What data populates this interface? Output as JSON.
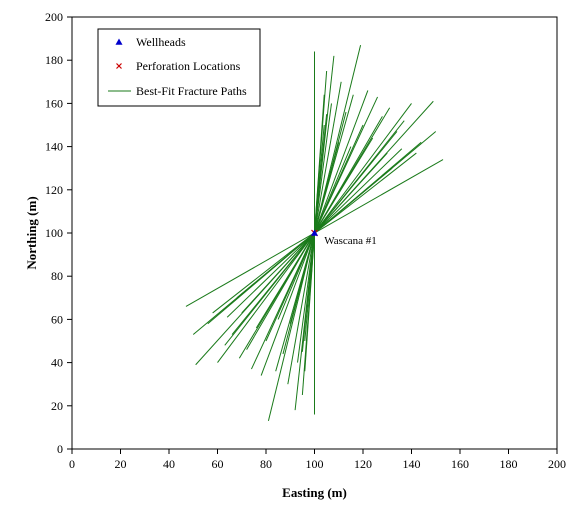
{
  "chart_data": {
    "type": "line",
    "title": "",
    "xlabel": "Easting (m)",
    "ylabel": "Northing (m)",
    "xlim": [
      0,
      200
    ],
    "ylim": [
      0,
      200
    ],
    "xticks": [
      0,
      20,
      40,
      60,
      80,
      100,
      120,
      140,
      160,
      180,
      200
    ],
    "yticks": [
      0,
      20,
      40,
      60,
      80,
      100,
      120,
      140,
      160,
      180,
      200
    ],
    "grid": false,
    "legend_position": "top-left",
    "legend": [
      {
        "label": "Wellheads",
        "marker": "triangle",
        "color": "#0000cc"
      },
      {
        "label": "Perforation Locations",
        "marker": "x",
        "color": "#cc0000"
      },
      {
        "label": "Best-Fit Fracture Paths",
        "marker": "line",
        "color": "#1a7a1a"
      }
    ],
    "wellheads": [
      {
        "x": 100,
        "y": 100
      }
    ],
    "perforations": [
      {
        "x": 100,
        "y": 100
      }
    ],
    "annotations": [
      {
        "text": "Wascana #1",
        "x": 104,
        "y": 95
      }
    ],
    "fracture_color": "#1a7a1a",
    "fracture_paths": [
      [
        [
          100,
          16
        ],
        [
          100,
          184
        ]
      ],
      [
        [
          81,
          13
        ],
        [
          119,
          187
        ]
      ],
      [
        [
          92,
          18
        ],
        [
          108,
          182
        ]
      ],
      [
        [
          95,
          25
        ],
        [
          105,
          175
        ]
      ],
      [
        [
          89,
          30
        ],
        [
          111,
          170
        ]
      ],
      [
        [
          96,
          36
        ],
        [
          104,
          164
        ]
      ],
      [
        [
          78,
          34
        ],
        [
          122,
          166
        ]
      ],
      [
        [
          84,
          36
        ],
        [
          116,
          164
        ]
      ],
      [
        [
          93,
          40
        ],
        [
          107,
          160
        ]
      ],
      [
        [
          95,
          45
        ],
        [
          105,
          155
        ]
      ],
      [
        [
          96,
          50
        ],
        [
          104,
          150
        ]
      ],
      [
        [
          74,
          37
        ],
        [
          126,
          163
        ]
      ],
      [
        [
          69,
          42
        ],
        [
          131,
          158
        ]
      ],
      [
        [
          87,
          44
        ],
        [
          113,
          156
        ]
      ],
      [
        [
          60,
          40
        ],
        [
          140,
          160
        ]
      ],
      [
        [
          72,
          46
        ],
        [
          128,
          154
        ]
      ],
      [
        [
          63,
          48
        ],
        [
          137,
          152
        ]
      ],
      [
        [
          51,
          39
        ],
        [
          149,
          161
        ]
      ],
      [
        [
          66,
          53
        ],
        [
          134,
          147
        ]
      ],
      [
        [
          50,
          53
        ],
        [
          150,
          147
        ]
      ],
      [
        [
          56,
          58
        ],
        [
          144,
          142
        ]
      ],
      [
        [
          58,
          63
        ],
        [
          142,
          137
        ]
      ],
      [
        [
          47,
          66
        ],
        [
          153,
          134
        ]
      ],
      [
        [
          64,
          61
        ],
        [
          136,
          139
        ]
      ],
      [
        [
          70,
          63
        ],
        [
          130,
          137
        ]
      ],
      [
        [
          76,
          56
        ],
        [
          124,
          144
        ]
      ],
      [
        [
          80,
          50
        ],
        [
          120,
          150
        ]
      ],
      [
        [
          85,
          60
        ],
        [
          115,
          140
        ]
      ],
      [
        [
          90,
          58
        ],
        [
          110,
          142
        ]
      ],
      [
        [
          68,
          70
        ],
        [
          132,
          130
        ]
      ]
    ]
  }
}
